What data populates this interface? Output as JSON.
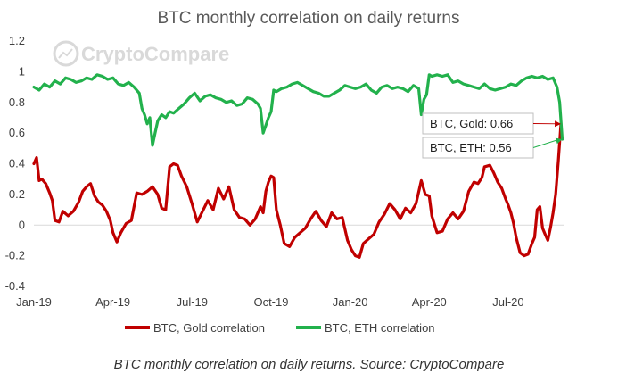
{
  "chart_data": {
    "type": "line",
    "title": "BTC monthly correlation on daily returns",
    "watermark": "CryptoCompare",
    "caption": "BTC monthly correlation on daily returns. Source: CryptoCompare",
    "ylim": [
      -0.4,
      1.2
    ],
    "yticks": [
      "-0.4",
      "-0.2",
      "0",
      "0.2",
      "0.4",
      "0.6",
      "0.8",
      "1",
      "1.2"
    ],
    "ytick_values": [
      -0.4,
      -0.2,
      0,
      0.2,
      0.4,
      0.6,
      0.8,
      1.0,
      1.2
    ],
    "xlim": [
      0,
      20.1
    ],
    "xticks": [
      "Jan-19",
      "Apr-19",
      "Jul-19",
      "Oct-19",
      "Jan-20",
      "Apr-20",
      "Jul-20"
    ],
    "xtick_values": [
      0,
      3,
      6,
      9,
      12,
      15,
      18
    ],
    "x_unit": "months since Jan-2019",
    "series": [
      {
        "name": "BTC, Gold correlation",
        "color": "#c00000",
        "x": [
          0.0,
          0.1,
          0.2,
          0.3,
          0.45,
          0.6,
          0.7,
          0.8,
          0.95,
          1.1,
          1.3,
          1.5,
          1.7,
          1.85,
          2.0,
          2.15,
          2.3,
          2.45,
          2.6,
          2.75,
          2.9,
          3.0,
          3.15,
          3.3,
          3.5,
          3.7,
          3.9,
          4.1,
          4.3,
          4.5,
          4.7,
          4.85,
          5.0,
          5.15,
          5.3,
          5.45,
          5.6,
          5.8,
          6.0,
          6.2,
          6.4,
          6.6,
          6.8,
          7.0,
          7.2,
          7.4,
          7.6,
          7.8,
          8.0,
          8.2,
          8.4,
          8.6,
          8.7,
          8.8,
          8.9,
          9.0,
          9.1,
          9.2,
          9.35,
          9.5,
          9.7,
          9.9,
          10.1,
          10.3,
          10.5,
          10.7,
          10.9,
          11.1,
          11.3,
          11.5,
          11.7,
          11.9,
          12.05,
          12.2,
          12.35,
          12.5,
          12.7,
          12.9,
          13.1,
          13.3,
          13.5,
          13.7,
          13.9,
          14.1,
          14.3,
          14.5,
          14.7,
          14.85,
          15.0,
          15.1,
          15.3,
          15.5,
          15.7,
          15.9,
          16.1,
          16.3,
          16.5,
          16.7,
          16.85,
          17.0,
          17.1,
          17.3,
          17.45,
          17.6,
          17.75,
          17.9,
          18.0,
          18.1,
          18.2,
          18.3,
          18.45,
          18.6,
          18.75,
          18.9,
          19.0,
          19.1,
          19.2,
          19.3,
          19.4,
          19.5,
          19.6,
          19.7,
          19.8,
          19.9,
          20.0
        ],
        "values": [
          0.4,
          0.44,
          0.29,
          0.3,
          0.27,
          0.21,
          0.16,
          0.03,
          0.02,
          0.09,
          0.06,
          0.09,
          0.15,
          0.22,
          0.25,
          0.27,
          0.19,
          0.15,
          0.13,
          0.09,
          0.03,
          -0.05,
          -0.11,
          -0.05,
          0.01,
          0.03,
          0.21,
          0.2,
          0.22,
          0.25,
          0.2,
          0.11,
          0.1,
          0.38,
          0.4,
          0.39,
          0.32,
          0.25,
          0.14,
          0.02,
          0.09,
          0.16,
          0.1,
          0.24,
          0.17,
          0.25,
          0.1,
          0.05,
          0.04,
          0.0,
          0.04,
          0.12,
          0.08,
          0.22,
          0.28,
          0.32,
          0.31,
          0.1,
          0.0,
          -0.12,
          -0.14,
          -0.08,
          -0.05,
          -0.02,
          0.04,
          0.09,
          0.03,
          -0.01,
          0.08,
          0.04,
          0.05,
          -0.1,
          -0.16,
          -0.2,
          -0.21,
          -0.12,
          -0.09,
          -0.06,
          0.02,
          0.07,
          0.14,
          0.1,
          0.04,
          0.11,
          0.08,
          0.14,
          0.29,
          0.2,
          0.19,
          0.06,
          -0.05,
          -0.04,
          0.04,
          0.08,
          0.04,
          0.09,
          0.22,
          0.28,
          0.27,
          0.31,
          0.38,
          0.39,
          0.34,
          0.28,
          0.24,
          0.17,
          0.13,
          0.08,
          0.01,
          -0.08,
          -0.18,
          -0.2,
          -0.19,
          -0.12,
          -0.08,
          0.1,
          0.12,
          -0.02,
          -0.06,
          -0.1,
          -0.02,
          0.08,
          0.2,
          0.42,
          0.66
        ],
        "end_label": "BTC, Gold: 0.66"
      },
      {
        "name": "BTC, ETH correlation",
        "color": "#22b14c",
        "x": [
          0.0,
          0.2,
          0.4,
          0.6,
          0.8,
          1.0,
          1.2,
          1.4,
          1.6,
          1.8,
          2.0,
          2.2,
          2.4,
          2.6,
          2.8,
          3.0,
          3.2,
          3.4,
          3.6,
          3.8,
          4.0,
          4.1,
          4.2,
          4.3,
          4.4,
          4.5,
          4.6,
          4.7,
          4.85,
          5.0,
          5.15,
          5.3,
          5.5,
          5.7,
          5.9,
          6.1,
          6.3,
          6.5,
          6.7,
          6.9,
          7.1,
          7.3,
          7.5,
          7.7,
          7.9,
          8.1,
          8.3,
          8.5,
          8.6,
          8.7,
          8.8,
          8.9,
          9.0,
          9.1,
          9.2,
          9.4,
          9.6,
          9.8,
          10.0,
          10.2,
          10.4,
          10.6,
          10.8,
          11.0,
          11.2,
          11.4,
          11.6,
          11.8,
          12.0,
          12.2,
          12.4,
          12.6,
          12.8,
          13.0,
          13.2,
          13.4,
          13.6,
          13.8,
          14.0,
          14.2,
          14.4,
          14.6,
          14.7,
          14.8,
          14.9,
          15.0,
          15.1,
          15.3,
          15.5,
          15.7,
          15.9,
          16.1,
          16.3,
          16.5,
          16.7,
          16.9,
          17.1,
          17.3,
          17.5,
          17.7,
          17.9,
          18.1,
          18.3,
          18.5,
          18.7,
          18.9,
          19.1,
          19.3,
          19.5,
          19.7,
          19.85,
          19.95,
          20.05
        ],
        "values": [
          0.9,
          0.88,
          0.92,
          0.9,
          0.94,
          0.92,
          0.96,
          0.95,
          0.93,
          0.94,
          0.96,
          0.95,
          0.98,
          0.97,
          0.95,
          0.96,
          0.92,
          0.91,
          0.93,
          0.9,
          0.86,
          0.76,
          0.72,
          0.66,
          0.7,
          0.52,
          0.6,
          0.68,
          0.72,
          0.7,
          0.74,
          0.73,
          0.76,
          0.79,
          0.83,
          0.86,
          0.81,
          0.84,
          0.85,
          0.83,
          0.82,
          0.8,
          0.81,
          0.78,
          0.79,
          0.83,
          0.82,
          0.79,
          0.76,
          0.6,
          0.65,
          0.7,
          0.74,
          0.88,
          0.87,
          0.89,
          0.9,
          0.92,
          0.93,
          0.91,
          0.89,
          0.87,
          0.86,
          0.84,
          0.84,
          0.86,
          0.88,
          0.91,
          0.9,
          0.89,
          0.9,
          0.92,
          0.88,
          0.86,
          0.9,
          0.91,
          0.89,
          0.9,
          0.89,
          0.87,
          0.91,
          0.89,
          0.72,
          0.82,
          0.85,
          0.98,
          0.97,
          0.98,
          0.97,
          0.98,
          0.93,
          0.94,
          0.92,
          0.91,
          0.9,
          0.89,
          0.92,
          0.89,
          0.88,
          0.89,
          0.9,
          0.92,
          0.91,
          0.94,
          0.96,
          0.97,
          0.96,
          0.97,
          0.95,
          0.96,
          0.9,
          0.8,
          0.56
        ],
        "end_label": "BTC, ETH: 0.56"
      }
    ]
  }
}
